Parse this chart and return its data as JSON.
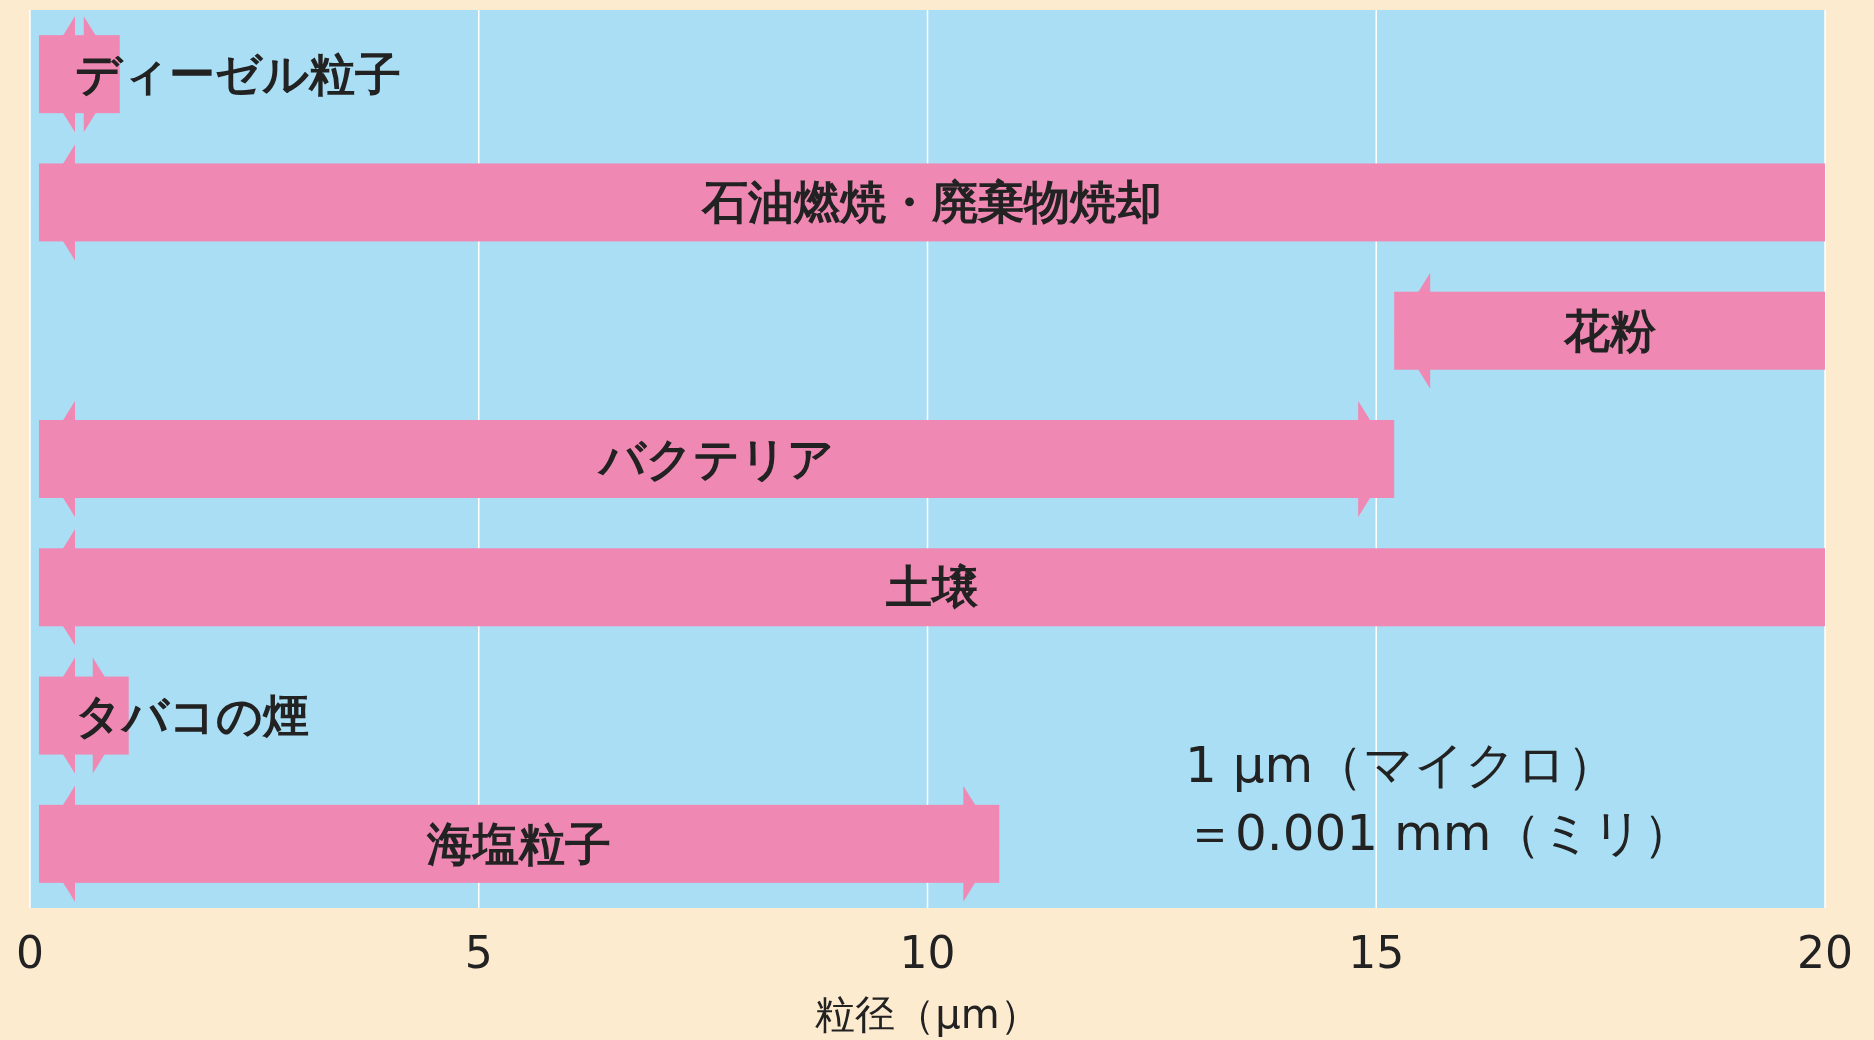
{
  "chart_data": {
    "type": "bar",
    "orientation": "horizontal",
    "categories": [
      "ディーゼル粒子",
      "石油燃焼・廃棄物焼却",
      "花粉",
      "バクテリア",
      "土壌",
      "タバコの煙",
      "海塩粒子"
    ],
    "base": [
      0.1,
      0.1,
      15.2,
      0.1,
      0.1,
      0.1,
      0.1
    ],
    "values": [
      0.9,
      19.9,
      4.8,
      15.1,
      19.9,
      1.0,
      10.7
    ],
    "color": "#f088b4",
    "xlim": [
      0,
      20
    ],
    "xticks": [
      0,
      5,
      10,
      15,
      20
    ],
    "xlabel": "粒径（μm）",
    "grid": "x",
    "annotations": [
      "1 μm（マイクロ）",
      "＝0.001 mm（ミリ）"
    ]
  }
}
